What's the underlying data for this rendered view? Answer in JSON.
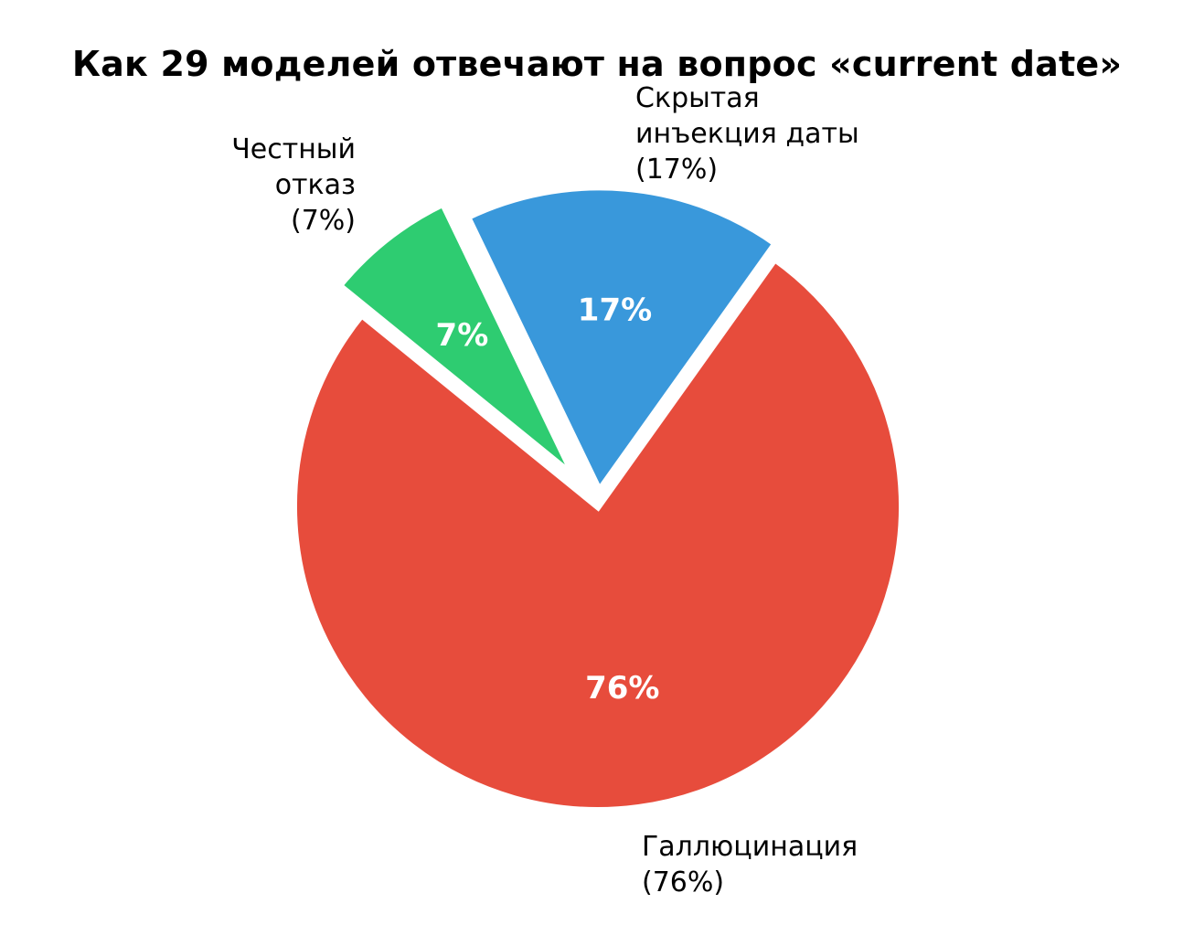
{
  "chart_data": {
    "type": "pie",
    "title": "Как 29 моделей отвечают на вопрос «current date»",
    "total_models": 29,
    "start_angle_deg": 54.5,
    "direction": "counterclockwise",
    "slices": [
      {
        "key": "injection",
        "label": "Скрытая\nинъекция даты",
        "label_pct": "(17%)",
        "inner": "17%",
        "value": 17,
        "count": 5,
        "color": "#3998db",
        "explode": 0.05
      },
      {
        "key": "refusal",
        "label": "Честный\nотказ",
        "label_pct": "(7%)",
        "inner": "7%",
        "value": 7,
        "count": 2,
        "color": "#2ecc71",
        "explode": 0.12
      },
      {
        "key": "hallucination",
        "label": "Галлюцинация",
        "label_pct": "(76%)",
        "inner": "76%",
        "value": 76,
        "count": 22,
        "color": "#e74c3c",
        "explode": 0
      }
    ]
  },
  "labels": {
    "injection": "Скрытая\nинъекция даты\n(17%)",
    "refusal": "Честный\nотказ\n(7%)",
    "hallucination": "Галлюцинация\n(76%)"
  }
}
